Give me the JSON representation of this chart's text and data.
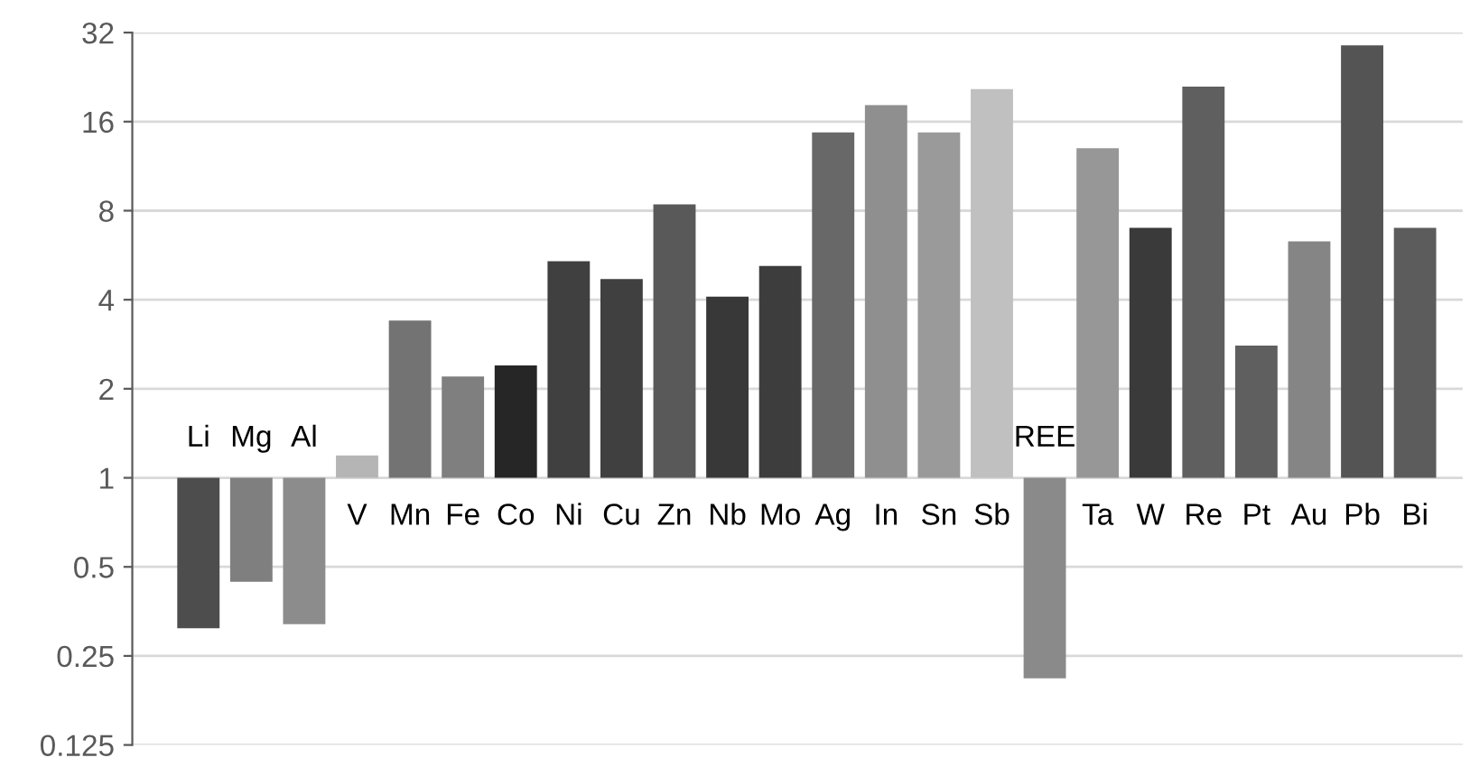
{
  "chart_data": {
    "type": "bar",
    "log": "y",
    "categories": [
      "Li",
      "Mg",
      "Al",
      "V",
      "Mn",
      "Fe",
      "Co",
      "Ni",
      "Cu",
      "Zn",
      "Nb",
      "Mo",
      "Ag",
      "In",
      "Sn",
      "Sb",
      "REE",
      "Ta",
      "W",
      "Re",
      "Pt",
      "Au",
      "Pb",
      "Bi"
    ],
    "values": [
      -0.69,
      -0.555,
      -0.68,
      0.19,
      2.4,
      1.2,
      1.4,
      4.4,
      3.7,
      7.4,
      3.1,
      4.2,
      13.7,
      17.2,
      13.7,
      19.6,
      -0.79,
      12,
      6.0,
      20,
      1.8,
      5.3,
      28,
      6.0
    ],
    "base": [
      1,
      1,
      1,
      1,
      1,
      1,
      1,
      1,
      1,
      1,
      1,
      1,
      1,
      1,
      1,
      1,
      1,
      1,
      1,
      1,
      1,
      1,
      1,
      1
    ],
    "colors": [
      "#4d4d4d",
      "#7f7f7f",
      "#8c8c8c",
      "#b5b5b5",
      "#737373",
      "#7f7f7f",
      "#262626",
      "#404040",
      "#404040",
      "#595959",
      "#383838",
      "#3d3d3d",
      "#686868",
      "#8f8f8f",
      "#9a9a9a",
      "#c0c0c0",
      "#8a8a8a",
      "#979797",
      "#3a3a3a",
      "#5f5f5f",
      "#5f5f5f",
      "#858585",
      "#545454",
      "#5c5c5c"
    ],
    "ylim": [
      0.125,
      32
    ],
    "yticks": [
      0.125,
      0.25,
      0.5,
      1,
      2,
      4,
      8,
      16,
      32
    ],
    "grid": "y",
    "legend": false
  }
}
